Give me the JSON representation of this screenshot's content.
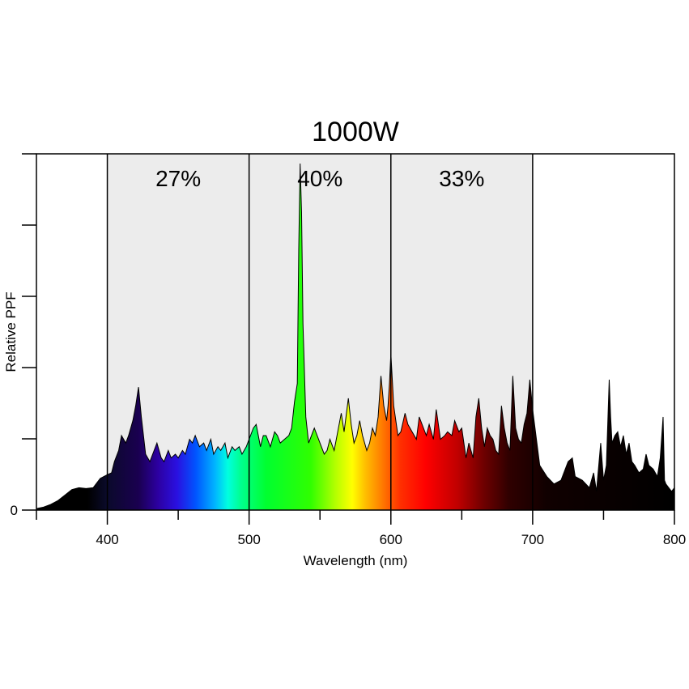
{
  "chart_data": {
    "type": "area",
    "title": "1000W",
    "xlabel": "Wavelength (nm)",
    "ylabel": "Relative PPF",
    "xlim": [
      350,
      800
    ],
    "x_ticks": [
      "400",
      "500",
      "600",
      "700",
      "800"
    ],
    "y_ticks": [
      "0"
    ],
    "bands": [
      {
        "from": 400,
        "to": 500,
        "label": "27%",
        "fill": "#ececec"
      },
      {
        "from": 500,
        "to": 600,
        "label": "40%",
        "fill": "#ececec"
      },
      {
        "from": 600,
        "to": 700,
        "label": "33%",
        "fill": "#ececec"
      }
    ],
    "series": [
      {
        "x": [
          350,
          355,
          360,
          365,
          370,
          375,
          380,
          385,
          390,
          395,
          400,
          403,
          405,
          408,
          410,
          413,
          415,
          418,
          420,
          422,
          424,
          427,
          430,
          433,
          435,
          438,
          440,
          443,
          445,
          448,
          450,
          453,
          455,
          458,
          460,
          462,
          465,
          468,
          470,
          473,
          475,
          478,
          480,
          483,
          485,
          488,
          490,
          493,
          495,
          498,
          500,
          503,
          505,
          508,
          510,
          512,
          515,
          518,
          520,
          522,
          525,
          528,
          530,
          532,
          534,
          535,
          536,
          537,
          538,
          540,
          542,
          544,
          546,
          548,
          550,
          553,
          555,
          557,
          560,
          562,
          565,
          567,
          568,
          570,
          572,
          574,
          576,
          578,
          580,
          583,
          585,
          587,
          589,
          591,
          593,
          595,
          597,
          598,
          599,
          600,
          602,
          605,
          607,
          610,
          612,
          615,
          618,
          620,
          623,
          625,
          627,
          630,
          632,
          635,
          638,
          640,
          643,
          645,
          648,
          650,
          653,
          655,
          658,
          660,
          662,
          664,
          666,
          668,
          670,
          672,
          674,
          676,
          678,
          680,
          682,
          684,
          686,
          688,
          690,
          692,
          694,
          696,
          698,
          700,
          705,
          710,
          715,
          720,
          725,
          728,
          730,
          735,
          740,
          743,
          745,
          748,
          750,
          752,
          754,
          755,
          756,
          758,
          760,
          762,
          764,
          766,
          768,
          770,
          772,
          775,
          778,
          780,
          782,
          785,
          788,
          790,
          792,
          793,
          794,
          796,
          798,
          800
        ],
        "y": [
          0.004,
          0.008,
          0.015,
          0.025,
          0.04,
          0.055,
          0.06,
          0.058,
          0.06,
          0.085,
          0.095,
          0.1,
          0.13,
          0.16,
          0.2,
          0.18,
          0.2,
          0.24,
          0.28,
          0.33,
          0.25,
          0.15,
          0.13,
          0.16,
          0.18,
          0.14,
          0.13,
          0.16,
          0.14,
          0.15,
          0.14,
          0.16,
          0.15,
          0.19,
          0.18,
          0.2,
          0.17,
          0.18,
          0.16,
          0.19,
          0.15,
          0.17,
          0.16,
          0.18,
          0.14,
          0.17,
          0.16,
          0.17,
          0.15,
          0.17,
          0.19,
          0.22,
          0.23,
          0.17,
          0.2,
          0.2,
          0.17,
          0.21,
          0.2,
          0.18,
          0.19,
          0.2,
          0.22,
          0.29,
          0.34,
          0.7,
          0.93,
          0.8,
          0.5,
          0.25,
          0.18,
          0.2,
          0.22,
          0.2,
          0.18,
          0.15,
          0.16,
          0.19,
          0.16,
          0.2,
          0.26,
          0.21,
          0.24,
          0.3,
          0.23,
          0.18,
          0.2,
          0.24,
          0.2,
          0.16,
          0.18,
          0.22,
          0.2,
          0.25,
          0.36,
          0.28,
          0.24,
          0.28,
          0.34,
          0.42,
          0.28,
          0.2,
          0.21,
          0.26,
          0.23,
          0.21,
          0.19,
          0.25,
          0.22,
          0.2,
          0.23,
          0.19,
          0.27,
          0.19,
          0.2,
          0.21,
          0.2,
          0.24,
          0.21,
          0.22,
          0.14,
          0.18,
          0.14,
          0.25,
          0.3,
          0.22,
          0.17,
          0.22,
          0.2,
          0.19,
          0.16,
          0.15,
          0.28,
          0.22,
          0.18,
          0.16,
          0.36,
          0.22,
          0.19,
          0.18,
          0.23,
          0.26,
          0.35,
          0.27,
          0.12,
          0.09,
          0.07,
          0.08,
          0.13,
          0.14,
          0.09,
          0.08,
          0.06,
          0.1,
          0.05,
          0.18,
          0.08,
          0.12,
          0.35,
          0.25,
          0.18,
          0.2,
          0.21,
          0.17,
          0.2,
          0.15,
          0.18,
          0.13,
          0.12,
          0.1,
          0.11,
          0.15,
          0.12,
          0.11,
          0.09,
          0.14,
          0.25,
          0.08,
          0.07,
          0.06,
          0.05,
          0.06
        ]
      }
    ]
  }
}
